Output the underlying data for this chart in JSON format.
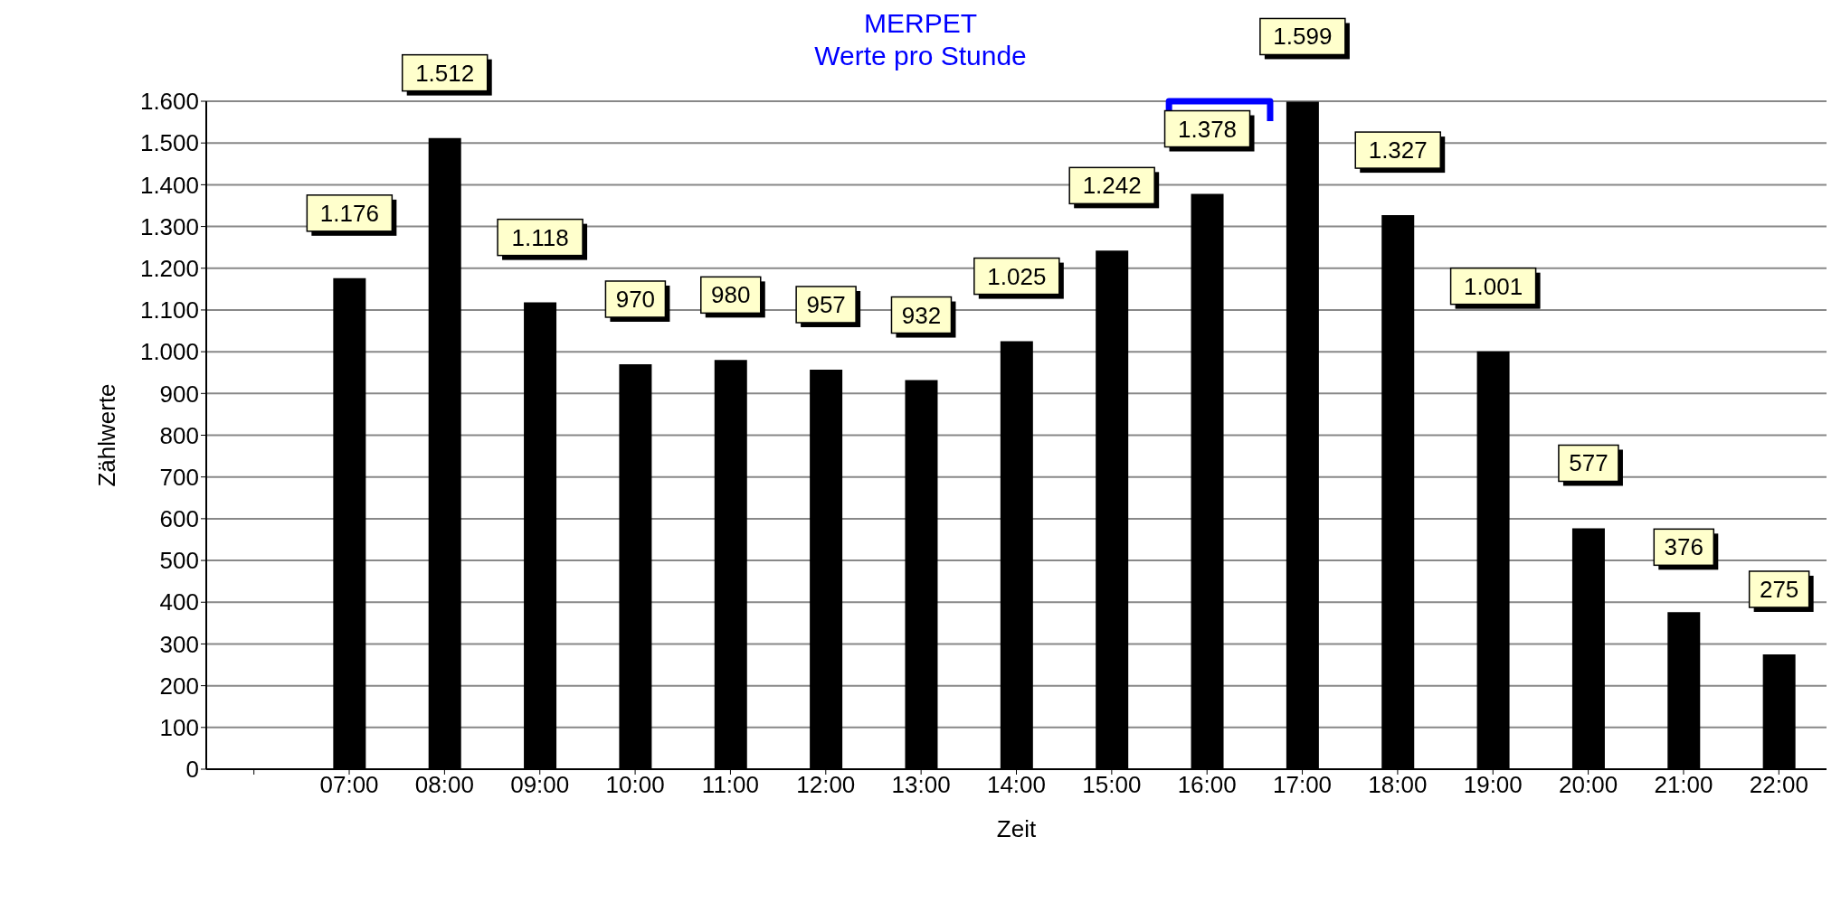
{
  "chart_data": {
    "type": "bar",
    "title": "MERPET",
    "subtitle": "Werte pro Stunde",
    "xlabel": "Zeit",
    "ylabel": "Zählwerte",
    "categories": [
      null,
      "07:00",
      "08:00",
      "09:00",
      "10:00",
      "11:00",
      "12:00",
      "13:00",
      "14:00",
      "15:00",
      "16:00",
      "17:00",
      "18:00",
      "19:00",
      "20:00",
      "21:00",
      "22:00"
    ],
    "values": [
      null,
      1176,
      1512,
      1118,
      970,
      980,
      957,
      932,
      1025,
      1242,
      1378,
      1599,
      1327,
      1001,
      577,
      376,
      275
    ],
    "value_labels": [
      null,
      "1.176",
      "1.512",
      "1.118",
      "970",
      "980",
      "957",
      "932",
      "1.025",
      "1.242",
      "1.378",
      "1.599",
      "1.327",
      "1.001",
      "577",
      "376",
      "275"
    ],
    "color": "#000000",
    "ylim": [
      0,
      1600
    ],
    "yticks": [
      {
        "value": 0,
        "label": "0"
      },
      {
        "value": 100,
        "label": "100"
      },
      {
        "value": 200,
        "label": "200"
      },
      {
        "value": 300,
        "label": "300"
      },
      {
        "value": 400,
        "label": "400"
      },
      {
        "value": 500,
        "label": "500"
      },
      {
        "value": 600,
        "label": "600"
      },
      {
        "value": 700,
        "label": "700"
      },
      {
        "value": 800,
        "label": "800"
      },
      {
        "value": 900,
        "label": "900"
      },
      {
        "value": 1000,
        "label": "1.000"
      },
      {
        "value": 1100,
        "label": "1.100"
      },
      {
        "value": 1200,
        "label": "1.200"
      },
      {
        "value": 1300,
        "label": "1.300"
      },
      {
        "value": 1400,
        "label": "1.400"
      },
      {
        "value": 1500,
        "label": "1.500"
      },
      {
        "value": 1600,
        "label": "1.600"
      }
    ],
    "grid": "y"
  }
}
